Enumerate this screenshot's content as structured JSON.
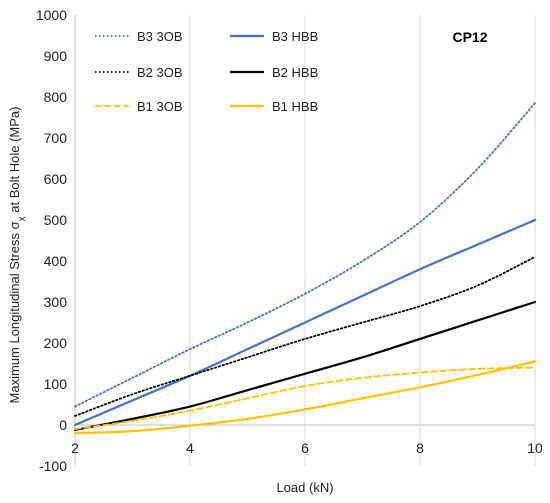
{
  "chart_data": {
    "type": "line",
    "title": "",
    "panel_label": "CP12",
    "xlabel": "Load (kN)",
    "ylabel_main": "Maximum Longitudinal Stress σ",
    "ylabel_sub": "x",
    "ylabel_tail": " at Bolt Hole (MPa)",
    "xlim": [
      2,
      10
    ],
    "ylim": [
      -100,
      1000
    ],
    "xticks": [
      2,
      4,
      6,
      8,
      10
    ],
    "yticks": [
      -100,
      0,
      100,
      200,
      300,
      400,
      500,
      600,
      700,
      800,
      900,
      1000
    ],
    "grid": "vertical",
    "legend_position": "top-left",
    "colors": {
      "B3": "#4472C4",
      "B2": "#000000",
      "B1": "#FFC000"
    },
    "series": [
      {
        "name": "B3 3OB",
        "color": "#4472C4",
        "style": "dotted",
        "x": [
          2,
          3,
          4,
          5,
          6,
          7,
          8,
          9,
          10
        ],
        "y": [
          45,
          115,
          185,
          250,
          320,
          400,
          495,
          625,
          785
        ]
      },
      {
        "name": "B3 HBB",
        "color": "#4472C4",
        "style": "solid",
        "x": [
          2,
          3,
          4,
          5,
          6,
          7,
          8,
          9,
          10
        ],
        "y": [
          0,
          60,
          120,
          185,
          250,
          315,
          380,
          440,
          500
        ]
      },
      {
        "name": "B2 3OB",
        "color": "#000000",
        "style": "dotted",
        "x": [
          2,
          3,
          4,
          5,
          6,
          7,
          8,
          9,
          10
        ],
        "y": [
          22,
          75,
          120,
          165,
          210,
          250,
          290,
          340,
          410
        ]
      },
      {
        "name": "B2 HBB",
        "color": "#000000",
        "style": "solid",
        "x": [
          2,
          3,
          4,
          5,
          6,
          7,
          8,
          9,
          10
        ],
        "y": [
          -12,
          15,
          45,
          85,
          125,
          165,
          210,
          255,
          300
        ]
      },
      {
        "name": "B1 3OB",
        "color": "#FFC000",
        "style": "dashed",
        "x": [
          2,
          3,
          4,
          5,
          6,
          7,
          8,
          9,
          10
        ],
        "y": [
          -10,
          10,
          35,
          65,
          95,
          115,
          128,
          137,
          140
        ]
      },
      {
        "name": "B1 HBB",
        "color": "#FFC000",
        "style": "solid",
        "x": [
          2,
          3,
          4,
          5,
          6,
          7,
          8,
          9,
          10
        ],
        "y": [
          -20,
          -15,
          -2,
          15,
          38,
          65,
          92,
          122,
          155
        ]
      }
    ]
  }
}
